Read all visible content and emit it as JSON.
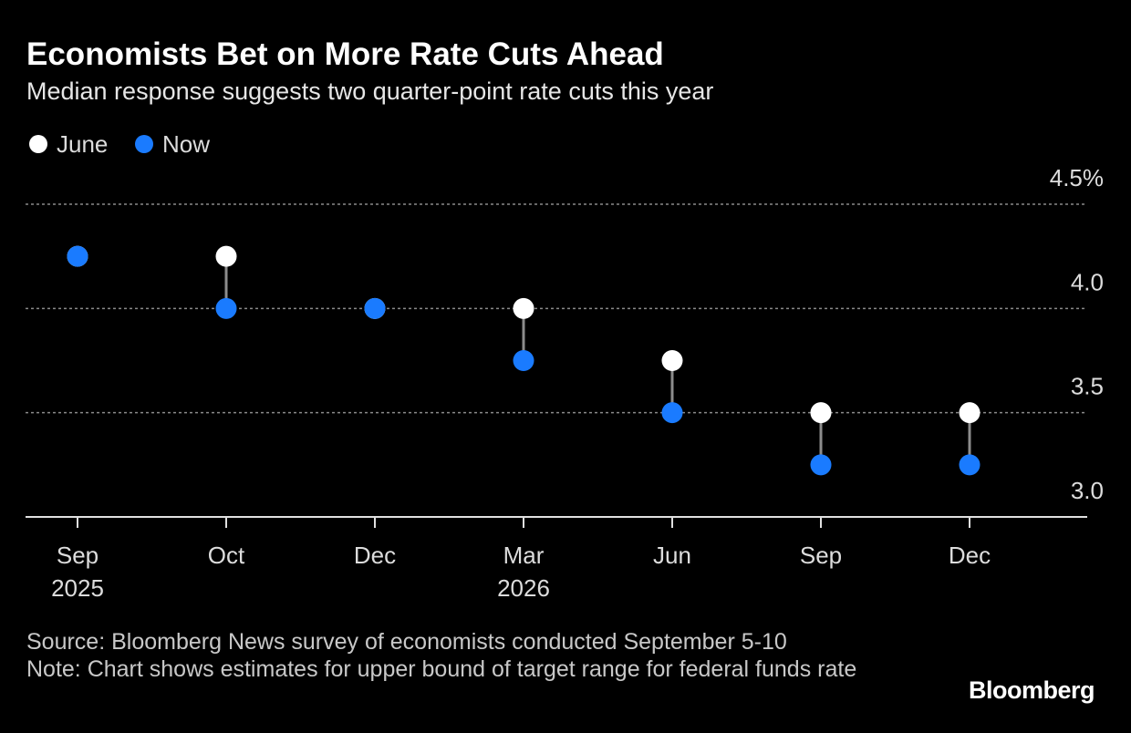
{
  "chart_data": {
    "type": "dot",
    "title": "Economists Bet on More Rate Cuts Ahead",
    "subtitle": "Median response suggests two quarter-point rate cuts this year",
    "categories": [
      "Sep",
      "Oct",
      "Dec",
      "Mar",
      "Jun",
      "Sep",
      "Dec"
    ],
    "category_years": [
      "2025",
      null,
      null,
      "2026",
      null,
      null,
      null
    ],
    "series": [
      {
        "name": "June",
        "color": "#ffffff",
        "values": [
          4.25,
          4.25,
          4.0,
          4.0,
          3.75,
          3.5,
          3.5
        ]
      },
      {
        "name": "Now",
        "color": "#1a7bff",
        "values": [
          4.25,
          4.0,
          4.0,
          3.75,
          3.5,
          3.25,
          3.25
        ]
      }
    ],
    "ylim": [
      3.0,
      4.5
    ],
    "yticks": [
      {
        "value": 3.0,
        "label": "3.0"
      },
      3.5,
      {
        "value": 4.0,
        "label": "4.0"
      },
      {
        "value": 4.5,
        "label": "4.5%"
      }
    ],
    "grid": true,
    "source": "Source: Bloomberg News survey of economists conducted September 5-10",
    "note": "Note: Chart shows estimates for upper bound of target range for federal funds rate",
    "brand": "Bloomberg"
  }
}
